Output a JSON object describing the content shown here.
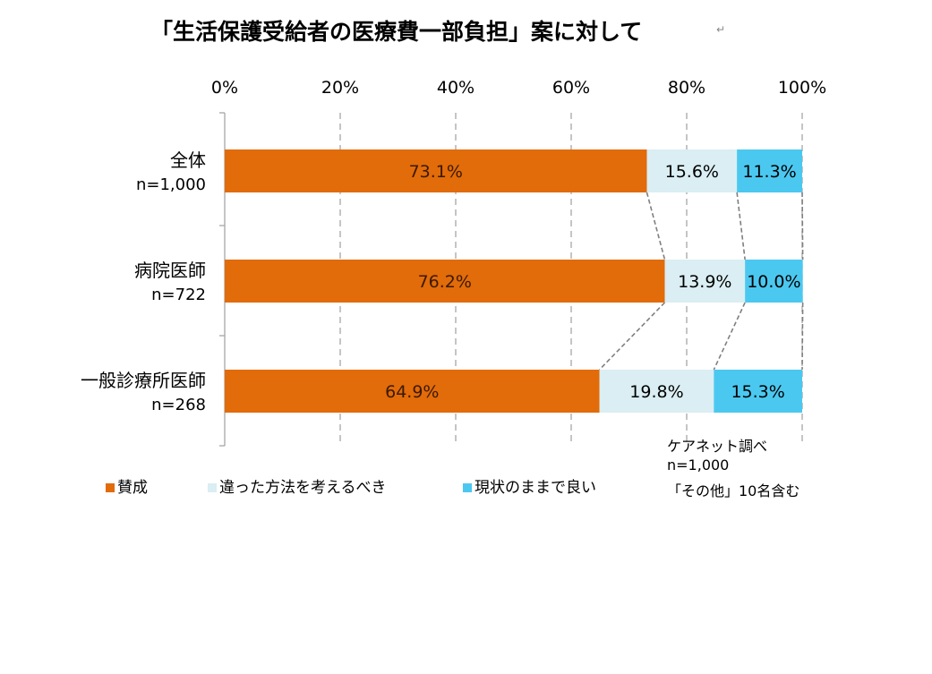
{
  "title": "「生活保護受給者の医療費一部負担」案に対して",
  "title_mark": "↵",
  "colors": {
    "agree": "#E26B0A",
    "other_way": "#DAEEF3",
    "keep": "#4BC8F0",
    "grid": "#A6A6A6",
    "connector": "#7F7F7F"
  },
  "chart_data": {
    "type": "bar",
    "orientation": "horizontal",
    "stacked": "percent",
    "title": "「生活保護受給者の医療費一部負担」案に対して",
    "xlim": [
      0,
      100
    ],
    "x_ticks": [
      "0%",
      "20%",
      "40%",
      "60%",
      "80%",
      "100%"
    ],
    "grid": true,
    "legend_position": "bottom-left",
    "categories": [
      {
        "label": "全体",
        "sub": "n=1,000"
      },
      {
        "label": "病院医師",
        "sub": "n=722"
      },
      {
        "label": "一般診療所医師",
        "sub": "n=268"
      }
    ],
    "series": [
      {
        "name": "賛成",
        "values": [
          73.1,
          76.2,
          64.9
        ],
        "labels": [
          "73.1%",
          "76.2%",
          "64.9%"
        ]
      },
      {
        "name": "違った方法を考えるべき",
        "values": [
          15.6,
          13.9,
          19.8
        ],
        "labels": [
          "15.6%",
          "13.9%",
          "19.8%"
        ]
      },
      {
        "name": "現状のままで良い",
        "values": [
          11.3,
          10.0,
          15.3
        ],
        "labels": [
          "11.3%",
          "10.0%",
          "15.3%"
        ]
      }
    ]
  },
  "notes": [
    "ケアネット調べ",
    "n=1,000",
    "「その他」10名含む"
  ]
}
